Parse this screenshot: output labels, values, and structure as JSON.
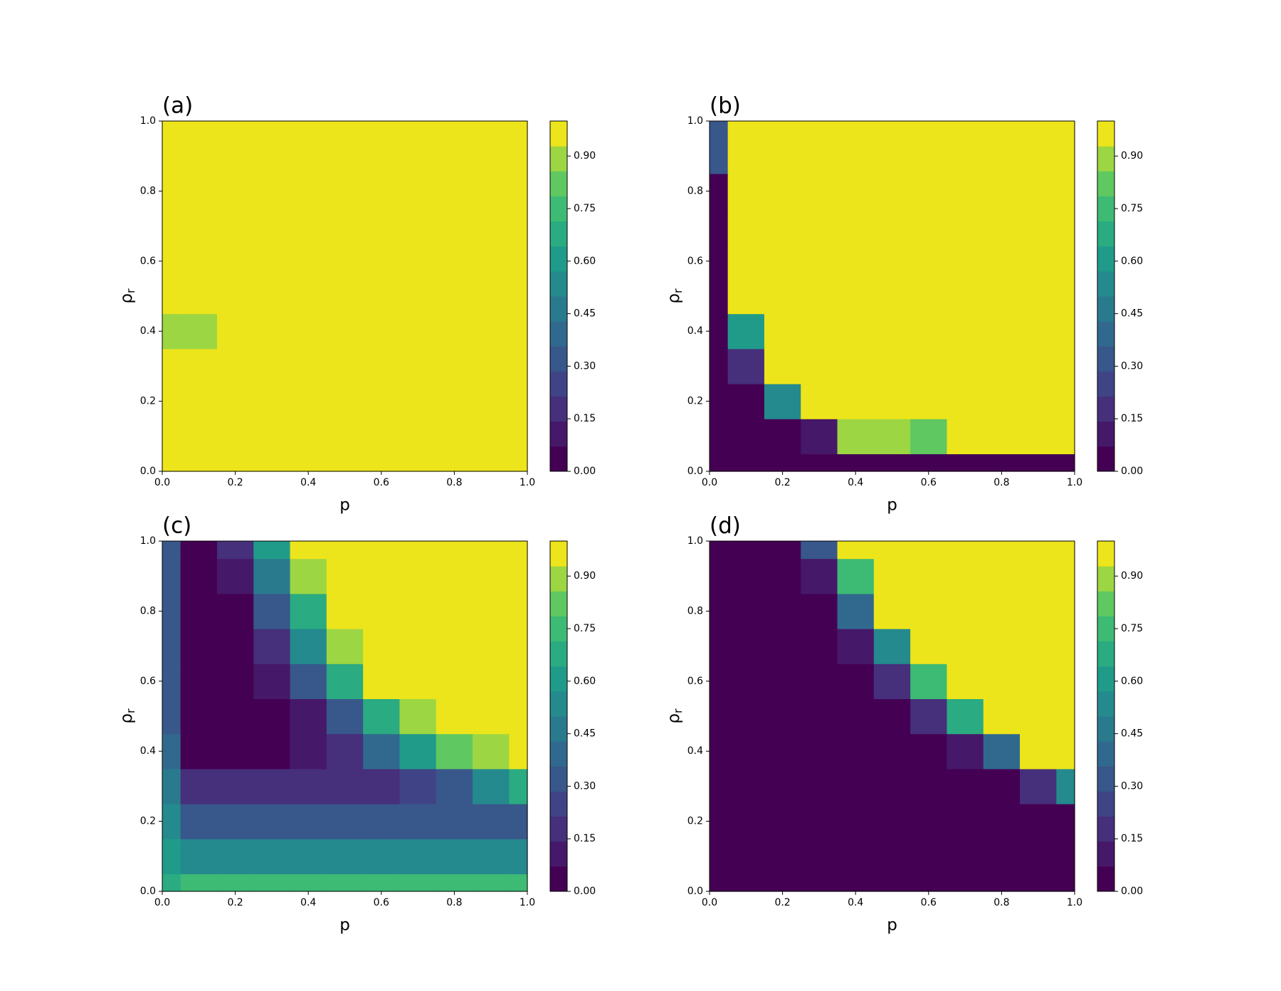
{
  "chart_data": [
    {
      "type": "contour",
      "label": "(a)",
      "xlabel": "p",
      "ylabel": "ρ",
      "ylabel_sub": "r",
      "cmap": "viridis",
      "levels": 14,
      "clim": [
        0,
        1
      ],
      "x": [
        0,
        0.1,
        0.2,
        0.3,
        0.4,
        0.5,
        0.6,
        0.7,
        0.8,
        0.9,
        1
      ],
      "y": [
        0,
        0.1,
        0.2,
        0.3,
        0.4,
        0.5,
        0.6,
        0.7,
        0.8,
        0.9,
        1
      ],
      "z": [
        [
          1,
          1,
          1,
          1,
          1,
          1,
          1,
          1,
          1,
          1,
          1
        ],
        [
          1,
          1,
          1,
          1,
          1,
          1,
          1,
          1,
          1,
          1,
          1
        ],
        [
          1,
          1,
          1,
          1,
          1,
          1,
          1,
          1,
          1,
          1,
          1
        ],
        [
          0.97,
          0.97,
          1,
          1,
          1,
          1,
          1,
          1,
          1,
          1,
          1
        ],
        [
          0.9,
          0.9,
          1,
          1,
          1,
          1,
          1,
          1,
          1,
          1,
          1
        ],
        [
          0.97,
          0.97,
          1,
          1,
          1,
          1,
          1,
          1,
          1,
          1,
          1
        ],
        [
          1,
          1,
          1,
          1,
          1,
          1,
          1,
          1,
          1,
          1,
          1
        ],
        [
          1,
          1,
          1,
          1,
          1,
          1,
          1,
          1,
          1,
          1,
          1
        ],
        [
          1,
          1,
          1,
          1,
          1,
          1,
          1,
          1,
          1,
          1,
          1
        ],
        [
          1,
          1,
          1,
          1,
          1,
          1,
          1,
          1,
          1,
          1,
          1
        ],
        [
          1,
          1,
          1,
          1,
          1,
          1,
          1,
          1,
          1,
          1,
          1
        ]
      ],
      "xlim": [
        0,
        1
      ],
      "ylim": [
        0,
        1
      ],
      "xticks": [
        {
          "value": 0,
          "label": "0.0"
        },
        {
          "value": 0.2,
          "label": "0.2"
        },
        {
          "value": 0.4,
          "label": "0.4"
        },
        {
          "value": 0.6,
          "label": "0.6"
        },
        {
          "value": 0.8,
          "label": "0.8"
        },
        {
          "value": 1,
          "label": "1.0"
        }
      ],
      "yticks": [
        {
          "value": 0,
          "label": "0.0"
        },
        {
          "value": 0.2,
          "label": "0.2"
        },
        {
          "value": 0.4,
          "label": "0.4"
        },
        {
          "value": 0.6,
          "label": "0.6"
        },
        {
          "value": 0.8,
          "label": "0.8"
        },
        {
          "value": 1,
          "label": "1.0"
        }
      ],
      "cticks": [
        {
          "value": 0,
          "label": "0.00"
        },
        {
          "value": 0.15,
          "label": "0.15"
        },
        {
          "value": 0.3,
          "label": "0.30"
        },
        {
          "value": 0.45,
          "label": "0.45"
        },
        {
          "value": 0.6,
          "label": "0.60"
        },
        {
          "value": 0.75,
          "label": "0.75"
        },
        {
          "value": 0.9,
          "label": "0.90"
        }
      ]
    },
    {
      "type": "contour",
      "label": "(b)",
      "xlabel": "p",
      "ylabel": "ρ",
      "ylabel_sub": "r",
      "cmap": "viridis",
      "levels": 14,
      "clim": [
        0,
        1
      ],
      "x": [
        0,
        0.1,
        0.2,
        0.3,
        0.4,
        0.5,
        0.6,
        0.7,
        0.8,
        0.9,
        1
      ],
      "y": [
        0,
        0.1,
        0.2,
        0.3,
        0.4,
        0.5,
        0.6,
        0.7,
        0.8,
        0.9,
        1
      ],
      "z": [
        [
          0.03,
          0.03,
          0.03,
          0.03,
          0.03,
          0.03,
          0.03,
          0.03,
          0.03,
          0.03,
          0.03
        ],
        [
          0.02,
          0.02,
          0.02,
          0.1,
          0.9,
          0.92,
          0.85,
          1,
          1,
          1,
          1
        ],
        [
          0.02,
          0.05,
          0.5,
          1,
          1,
          1,
          1,
          1,
          1,
          1,
          1
        ],
        [
          0.02,
          0.2,
          1,
          1,
          1,
          1,
          1,
          1,
          1,
          1,
          1
        ],
        [
          0.02,
          0.6,
          1,
          1,
          1,
          1,
          1,
          1,
          1,
          1,
          1
        ],
        [
          0.02,
          0.95,
          1,
          1,
          1,
          1,
          1,
          1,
          1,
          1,
          1
        ],
        [
          0.02,
          0.95,
          1,
          1,
          1,
          1,
          1,
          1,
          1,
          1,
          1
        ],
        [
          0.02,
          0.95,
          1,
          1,
          1,
          1,
          1,
          1,
          1,
          1,
          1
        ],
        [
          0.05,
          1,
          1,
          1,
          1,
          1,
          1,
          1,
          1,
          1,
          1
        ],
        [
          0.3,
          1,
          1,
          1,
          1,
          1,
          1,
          1,
          1,
          1,
          1
        ],
        [
          0.3,
          1,
          1,
          1,
          1,
          1,
          1,
          1,
          1,
          1,
          1
        ]
      ],
      "xlim": [
        0,
        1
      ],
      "ylim": [
        0,
        1
      ],
      "xticks": [
        {
          "value": 0,
          "label": "0.0"
        },
        {
          "value": 0.2,
          "label": "0.2"
        },
        {
          "value": 0.4,
          "label": "0.4"
        },
        {
          "value": 0.6,
          "label": "0.6"
        },
        {
          "value": 0.8,
          "label": "0.8"
        },
        {
          "value": 1,
          "label": "1.0"
        }
      ],
      "yticks": [
        {
          "value": 0,
          "label": "0.0"
        },
        {
          "value": 0.2,
          "label": "0.2"
        },
        {
          "value": 0.4,
          "label": "0.4"
        },
        {
          "value": 0.6,
          "label": "0.6"
        },
        {
          "value": 0.8,
          "label": "0.8"
        },
        {
          "value": 1,
          "label": "1.0"
        }
      ],
      "cticks": [
        {
          "value": 0,
          "label": "0.00"
        },
        {
          "value": 0.15,
          "label": "0.15"
        },
        {
          "value": 0.3,
          "label": "0.30"
        },
        {
          "value": 0.45,
          "label": "0.45"
        },
        {
          "value": 0.6,
          "label": "0.60"
        },
        {
          "value": 0.75,
          "label": "0.75"
        },
        {
          "value": 0.9,
          "label": "0.90"
        }
      ]
    },
    {
      "type": "contour",
      "label": "(c)",
      "xlabel": "p",
      "ylabel": "ρ",
      "ylabel_sub": "r",
      "cmap": "viridis",
      "levels": 14,
      "clim": [
        0,
        1
      ],
      "x": [
        0,
        0.1,
        0.2,
        0.3,
        0.4,
        0.5,
        0.6,
        0.7,
        0.8,
        0.9,
        1
      ],
      "y": [
        0,
        0.1,
        0.2,
        0.3,
        0.4,
        0.5,
        0.6,
        0.7,
        0.8,
        0.9,
        1
      ],
      "z": [
        [
          0.7,
          0.75,
          0.75,
          0.75,
          0.75,
          0.75,
          0.75,
          0.75,
          0.75,
          0.75,
          0.75
        ],
        [
          0.6,
          0.55,
          0.55,
          0.55,
          0.55,
          0.55,
          0.55,
          0.55,
          0.55,
          0.55,
          0.55
        ],
        [
          0.5,
          0.3,
          0.3,
          0.3,
          0.3,
          0.3,
          0.3,
          0.3,
          0.3,
          0.3,
          0.35
        ],
        [
          0.45,
          0.15,
          0.15,
          0.15,
          0.15,
          0.15,
          0.2,
          0.25,
          0.35,
          0.5,
          0.65
        ],
        [
          0.4,
          0.05,
          0.05,
          0.05,
          0.08,
          0.2,
          0.4,
          0.6,
          0.8,
          0.9,
          0.95
        ],
        [
          0.35,
          0.04,
          0.04,
          0.05,
          0.1,
          0.35,
          0.65,
          0.9,
          1,
          1,
          1
        ],
        [
          0.35,
          0.03,
          0.03,
          0.08,
          0.3,
          0.65,
          0.95,
          1,
          1,
          1,
          1
        ],
        [
          0.3,
          0.03,
          0.04,
          0.15,
          0.5,
          0.9,
          1,
          1,
          1,
          1,
          1
        ],
        [
          0.3,
          0.03,
          0.06,
          0.3,
          0.7,
          1,
          1,
          1,
          1,
          1,
          1
        ],
        [
          0.3,
          0.03,
          0.1,
          0.45,
          0.9,
          1,
          1,
          1,
          1,
          1,
          1
        ],
        [
          0.3,
          0.03,
          0.15,
          0.6,
          1,
          1,
          1,
          1,
          1,
          1,
          1
        ]
      ],
      "xlim": [
        0,
        1
      ],
      "ylim": [
        0,
        1
      ],
      "xticks": [
        {
          "value": 0,
          "label": "0.0"
        },
        {
          "value": 0.2,
          "label": "0.2"
        },
        {
          "value": 0.4,
          "label": "0.4"
        },
        {
          "value": 0.6,
          "label": "0.6"
        },
        {
          "value": 0.8,
          "label": "0.8"
        },
        {
          "value": 1,
          "label": "1.0"
        }
      ],
      "yticks": [
        {
          "value": 0,
          "label": "0.0"
        },
        {
          "value": 0.2,
          "label": "0.2"
        },
        {
          "value": 0.4,
          "label": "0.4"
        },
        {
          "value": 0.6,
          "label": "0.6"
        },
        {
          "value": 0.8,
          "label": "0.8"
        },
        {
          "value": 1,
          "label": "1.0"
        }
      ],
      "cticks": [
        {
          "value": 0,
          "label": "0.00"
        },
        {
          "value": 0.15,
          "label": "0.15"
        },
        {
          "value": 0.3,
          "label": "0.30"
        },
        {
          "value": 0.45,
          "label": "0.45"
        },
        {
          "value": 0.6,
          "label": "0.60"
        },
        {
          "value": 0.75,
          "label": "0.75"
        },
        {
          "value": 0.9,
          "label": "0.90"
        }
      ]
    },
    {
      "type": "contour",
      "label": "(d)",
      "xlabel": "p",
      "ylabel": "ρ",
      "ylabel_sub": "r",
      "cmap": "viridis",
      "levels": 14,
      "clim": [
        0,
        1
      ],
      "x": [
        0,
        0.1,
        0.2,
        0.3,
        0.4,
        0.5,
        0.6,
        0.7,
        0.8,
        0.9,
        1
      ],
      "y": [
        0,
        0.1,
        0.2,
        0.3,
        0.4,
        0.5,
        0.6,
        0.7,
        0.8,
        0.9,
        1
      ],
      "z": [
        [
          0.03,
          0.03,
          0.03,
          0.03,
          0.03,
          0.03,
          0.03,
          0.03,
          0.03,
          0.03,
          0.03
        ],
        [
          0.03,
          0.03,
          0.03,
          0.03,
          0.03,
          0.03,
          0.03,
          0.03,
          0.03,
          0.03,
          0.03
        ],
        [
          0.03,
          0.03,
          0.03,
          0.03,
          0.03,
          0.03,
          0.03,
          0.03,
          0.03,
          0.03,
          0.03
        ],
        [
          0.03,
          0.03,
          0.03,
          0.03,
          0.03,
          0.03,
          0.03,
          0.03,
          0.03,
          0.2,
          0.55
        ],
        [
          0.03,
          0.03,
          0.03,
          0.03,
          0.03,
          0.03,
          0.03,
          0.1,
          0.4,
          0.95,
          1
        ],
        [
          0.03,
          0.03,
          0.03,
          0.03,
          0.03,
          0.03,
          0.15,
          0.7,
          1,
          1,
          1
        ],
        [
          0.03,
          0.03,
          0.03,
          0.03,
          0.03,
          0.15,
          0.75,
          1,
          1,
          1,
          1
        ],
        [
          0.03,
          0.03,
          0.03,
          0.03,
          0.08,
          0.5,
          1,
          1,
          1,
          1,
          1
        ],
        [
          0.03,
          0.03,
          0.03,
          0.03,
          0.4,
          0.95,
          1,
          1,
          1,
          1,
          1
        ],
        [
          0.03,
          0.03,
          0.03,
          0.1,
          0.75,
          1,
          1,
          1,
          1,
          1,
          1
        ],
        [
          0.03,
          0.03,
          0.03,
          0.3,
          0.95,
          1,
          1,
          1,
          1,
          1,
          1
        ]
      ],
      "xlim": [
        0,
        1
      ],
      "ylim": [
        0,
        1
      ],
      "xticks": [
        {
          "value": 0,
          "label": "0.0"
        },
        {
          "value": 0.2,
          "label": "0.2"
        },
        {
          "value": 0.4,
          "label": "0.4"
        },
        {
          "value": 0.6,
          "label": "0.6"
        },
        {
          "value": 0.8,
          "label": "0.8"
        },
        {
          "value": 1,
          "label": "1.0"
        }
      ],
      "yticks": [
        {
          "value": 0,
          "label": "0.0"
        },
        {
          "value": 0.2,
          "label": "0.2"
        },
        {
          "value": 0.4,
          "label": "0.4"
        },
        {
          "value": 0.6,
          "label": "0.6"
        },
        {
          "value": 0.8,
          "label": "0.8"
        },
        {
          "value": 1,
          "label": "1.0"
        }
      ],
      "cticks": [
        {
          "value": 0,
          "label": "0.00"
        },
        {
          "value": 0.15,
          "label": "0.15"
        },
        {
          "value": 0.3,
          "label": "0.30"
        },
        {
          "value": 0.45,
          "label": "0.45"
        },
        {
          "value": 0.6,
          "label": "0.60"
        },
        {
          "value": 0.75,
          "label": "0.75"
        },
        {
          "value": 0.9,
          "label": "0.90"
        }
      ]
    }
  ]
}
